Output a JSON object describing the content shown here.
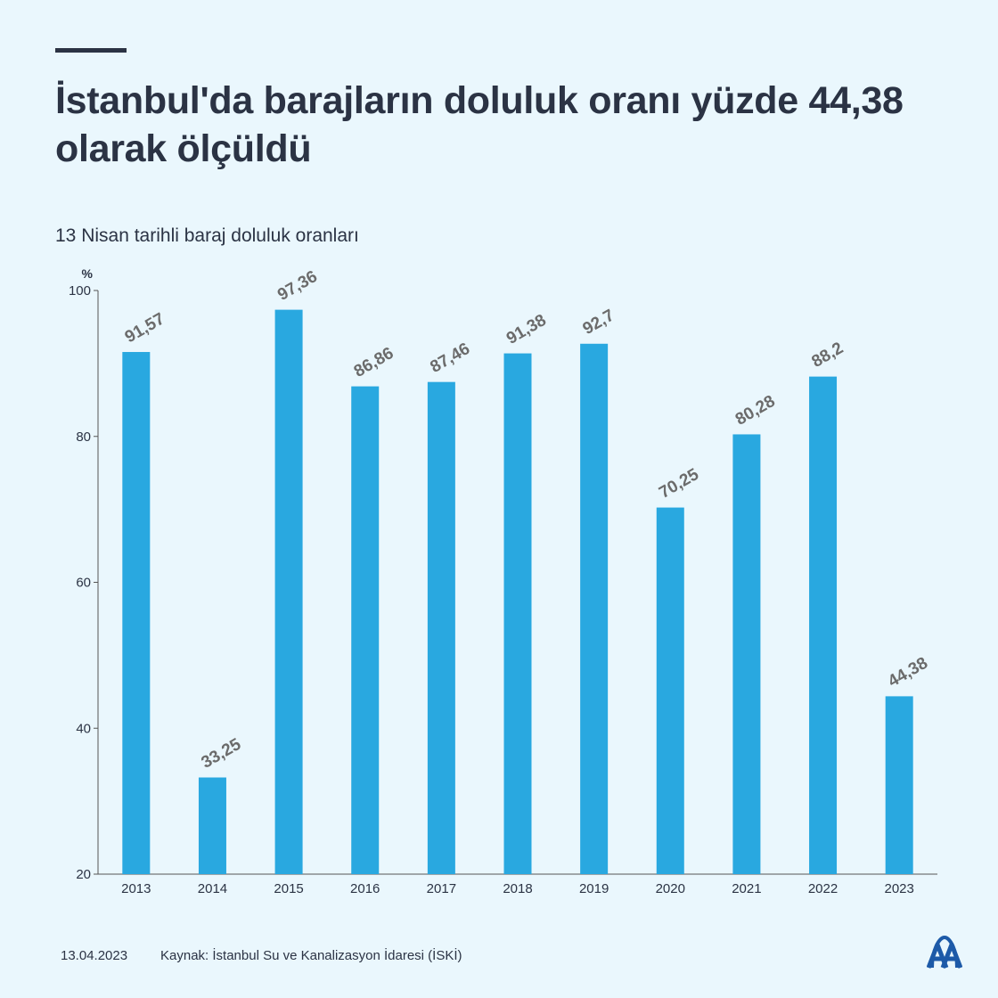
{
  "header": {
    "title": "İstanbul'da barajların doluluk oranı yüzde 44,38 olarak ölçüldü",
    "subtitle": "13 Nisan tarihli baraj doluluk oranları"
  },
  "footer": {
    "date": "13.04.2023",
    "source": "Kaynak: İstanbul Su ve Kanalizasyon İdaresi (İSKİ)",
    "logo_text": "AA"
  },
  "colors": {
    "bar": "#29a8e0",
    "text": "#2b3344",
    "value_label": "#6b6b6b",
    "axis": "#555555",
    "background": "#eaf7fd"
  },
  "chart_data": {
    "type": "bar",
    "title": "",
    "xlabel": "",
    "ylabel": "%",
    "categories": [
      "2013",
      "2014",
      "2015",
      "2016",
      "2017",
      "2018",
      "2019",
      "2020",
      "2021",
      "2022",
      "2023"
    ],
    "values": [
      91.57,
      33.25,
      97.36,
      86.86,
      87.46,
      91.38,
      92.7,
      70.25,
      80.28,
      88.2,
      44.38
    ],
    "value_labels": [
      "91,57",
      "33,25",
      "97,36",
      "86,86",
      "87,46",
      "91,38",
      "92,7",
      "70,25",
      "80,28",
      "88,2",
      "44,38"
    ],
    "ylim": [
      20,
      100
    ],
    "yticks": [
      20,
      40,
      60,
      80,
      100
    ],
    "grid": false,
    "legend": "none"
  }
}
